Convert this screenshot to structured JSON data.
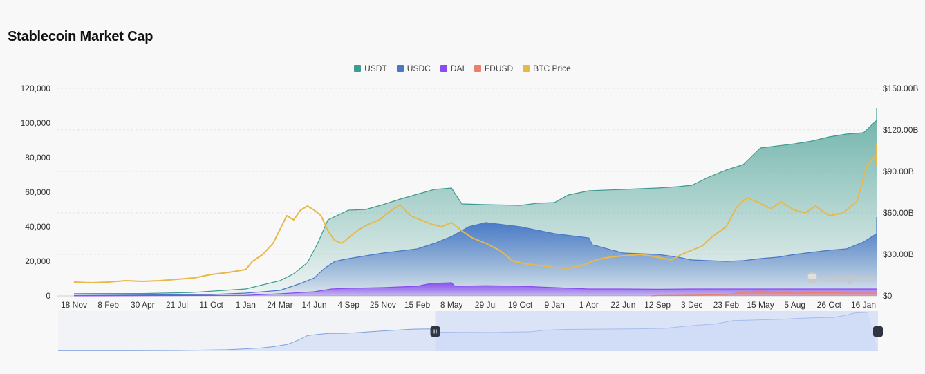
{
  "title": "Stablecoin Market Cap",
  "watermark": "coinglass",
  "chart_data": {
    "type": "area",
    "title": "Stablecoin Market Cap",
    "x_ticks": [
      "18 Nov",
      "8 Feb",
      "30 Apr",
      "21 Jul",
      "11 Oct",
      "1 Jan",
      "24 Mar",
      "14 Jun",
      "4 Sep",
      "25 Nov",
      "15 Feb",
      "8 May",
      "29 Jul",
      "19 Oct",
      "9 Jan",
      "1 Apr",
      "22 Jun",
      "12 Sep",
      "3 Dec",
      "23 Feb",
      "15 May",
      "5 Aug",
      "26 Oct",
      "16 Jan"
    ],
    "y_left": {
      "ticks": [
        "120,000",
        "100,000",
        "80,000",
        "60,000",
        "40,000",
        "20,000",
        "0"
      ],
      "values": [
        120000,
        100000,
        80000,
        60000,
        40000,
        20000,
        0
      ],
      "range": [
        0,
        120000
      ]
    },
    "y_right": {
      "ticks": [
        "$150.00B",
        "$120.00B",
        "$90.00B",
        "$60.00B",
        "$30.00B",
        "$0"
      ],
      "values": [
        150,
        120,
        90,
        60,
        30,
        0
      ],
      "range": [
        0,
        150
      ],
      "unit": "B USD"
    },
    "legend": [
      {
        "name": "USDT",
        "color": "#3e9b8f"
      },
      {
        "name": "USDC",
        "color": "#4a78c8"
      },
      {
        "name": "DAI",
        "color": "#8a4cf0"
      },
      {
        "name": "FDUSD",
        "color": "#ec7f68"
      },
      {
        "name": "BTC Price",
        "color": "#e8b84a"
      }
    ],
    "series": [
      {
        "name": "USDT",
        "axis": "right",
        "kind": "stacked-area",
        "color": "#3e9b8f",
        "points": [
          [
            0,
            1.6
          ],
          [
            2,
            1.7
          ],
          [
            3.4,
            2.4
          ],
          [
            4.5,
            4.2
          ],
          [
            5,
            5
          ],
          [
            5.5,
            8
          ],
          [
            6,
            11
          ],
          [
            6.4,
            16
          ],
          [
            6.8,
            24
          ],
          [
            7.1,
            38
          ],
          [
            7.4,
            55
          ],
          [
            8,
            62
          ],
          [
            8.5,
            62.5
          ],
          [
            9,
            66
          ],
          [
            9.5,
            70
          ],
          [
            10,
            73.5
          ],
          [
            10.5,
            77
          ],
          [
            11,
            78
          ],
          [
            11.1,
            74
          ],
          [
            11.3,
            66.5
          ],
          [
            12,
            66
          ],
          [
            13,
            65.5
          ],
          [
            13.5,
            67
          ],
          [
            14,
            67.5
          ],
          [
            14.4,
            73
          ],
          [
            15,
            76
          ],
          [
            16,
            77
          ],
          [
            17,
            78
          ],
          [
            17.6,
            79
          ],
          [
            18,
            80
          ],
          [
            18.5,
            86
          ],
          [
            19,
            91
          ],
          [
            19.5,
            95
          ],
          [
            20,
            107
          ],
          [
            21,
            110
          ],
          [
            21.5,
            112
          ],
          [
            22,
            115
          ],
          [
            22.5,
            117
          ],
          [
            23,
            118
          ],
          [
            23.4,
            127
          ],
          [
            23.6,
            133
          ],
          [
            24,
            136
          ]
        ]
      },
      {
        "name": "USDC",
        "axis": "right",
        "kind": "area",
        "color": "#4a78c8",
        "points": [
          [
            0,
            0.3
          ],
          [
            4,
            1
          ],
          [
            5,
            2
          ],
          [
            6,
            4
          ],
          [
            6.6,
            9
          ],
          [
            7,
            13
          ],
          [
            7.3,
            20
          ],
          [
            7.6,
            25
          ],
          [
            8,
            27
          ],
          [
            9,
            31
          ],
          [
            10,
            34
          ],
          [
            10.5,
            38
          ],
          [
            11,
            43
          ],
          [
            11.5,
            50
          ],
          [
            12,
            53
          ],
          [
            13,
            50
          ],
          [
            14,
            45
          ],
          [
            15,
            42
          ],
          [
            15.1,
            37
          ],
          [
            16,
            31
          ],
          [
            17,
            30
          ],
          [
            17.6,
            28
          ],
          [
            18,
            26
          ],
          [
            19,
            25
          ],
          [
            19.5,
            25.5
          ],
          [
            20,
            27
          ],
          [
            20.5,
            28
          ],
          [
            21,
            30
          ],
          [
            22,
            33
          ],
          [
            22.5,
            34
          ],
          [
            23,
            39
          ],
          [
            23.5,
            45
          ],
          [
            24,
            57
          ]
        ]
      },
      {
        "name": "DAI",
        "axis": "right",
        "kind": "area",
        "color": "#8a4cf0",
        "points": [
          [
            0,
            0.05
          ],
          [
            5,
            0.4
          ],
          [
            6,
            1.5
          ],
          [
            7,
            3
          ],
          [
            7.5,
            5
          ],
          [
            8,
            5.5
          ],
          [
            9,
            6
          ],
          [
            9.5,
            6.5
          ],
          [
            10,
            7
          ],
          [
            10.4,
            9
          ],
          [
            11,
            9.5
          ],
          [
            11.1,
            7
          ],
          [
            12,
            7.4
          ],
          [
            13,
            7
          ],
          [
            14,
            6
          ],
          [
            15,
            5
          ],
          [
            16,
            5
          ],
          [
            17,
            4.8
          ],
          [
            18,
            5
          ],
          [
            19,
            5
          ],
          [
            20,
            5
          ],
          [
            21,
            5
          ],
          [
            22,
            5
          ],
          [
            23,
            5
          ],
          [
            24,
            5
          ]
        ]
      },
      {
        "name": "FDUSD",
        "axis": "right",
        "kind": "area",
        "color": "#ec7f68",
        "points": [
          [
            16.8,
            0
          ],
          [
            17,
            0.3
          ],
          [
            18,
            0.5
          ],
          [
            19,
            1
          ],
          [
            19.5,
            2.5
          ],
          [
            20,
            3.5
          ],
          [
            20.5,
            2.5
          ],
          [
            21,
            2
          ],
          [
            22,
            2.5
          ],
          [
            22.5,
            2
          ],
          [
            23,
            2
          ],
          [
            24,
            2
          ]
        ]
      },
      {
        "name": "BTC Price",
        "axis": "right",
        "kind": "line",
        "color": "#e8b84a",
        "points": [
          [
            0,
            10
          ],
          [
            0.5,
            9.5
          ],
          [
            1,
            10
          ],
          [
            1.5,
            11
          ],
          [
            2,
            10.5
          ],
          [
            2.5,
            11
          ],
          [
            3,
            12
          ],
          [
            3.5,
            13
          ],
          [
            4,
            15.5
          ],
          [
            4.5,
            17
          ],
          [
            5,
            19
          ],
          [
            5.2,
            25
          ],
          [
            5.5,
            30
          ],
          [
            5.8,
            38
          ],
          [
            6,
            48
          ],
          [
            6.2,
            58
          ],
          [
            6.4,
            55
          ],
          [
            6.6,
            62
          ],
          [
            6.8,
            65
          ],
          [
            7,
            62
          ],
          [
            7.2,
            58
          ],
          [
            7.4,
            47
          ],
          [
            7.6,
            40
          ],
          [
            7.8,
            38
          ],
          [
            8,
            42
          ],
          [
            8.3,
            48
          ],
          [
            8.6,
            52
          ],
          [
            8.9,
            55
          ],
          [
            9.2,
            61
          ],
          [
            9.5,
            66
          ],
          [
            9.8,
            58
          ],
          [
            10,
            56
          ],
          [
            10.4,
            52
          ],
          [
            10.7,
            50
          ],
          [
            11,
            53
          ],
          [
            11.3,
            47
          ],
          [
            11.6,
            42
          ],
          [
            12,
            38
          ],
          [
            12.4,
            33
          ],
          [
            12.8,
            25
          ],
          [
            13.2,
            23
          ],
          [
            13.6,
            22
          ],
          [
            14,
            20.5
          ],
          [
            14.4,
            20
          ],
          [
            14.8,
            22
          ],
          [
            15.2,
            26
          ],
          [
            15.6,
            28
          ],
          [
            16,
            29
          ],
          [
            16.5,
            30
          ],
          [
            17,
            28
          ],
          [
            17.4,
            26
          ],
          [
            17.7,
            30
          ],
          [
            18,
            33
          ],
          [
            18.3,
            36
          ],
          [
            18.6,
            43
          ],
          [
            19,
            50
          ],
          [
            19.3,
            64
          ],
          [
            19.6,
            71
          ],
          [
            20,
            67
          ],
          [
            20.3,
            63
          ],
          [
            20.6,
            68
          ],
          [
            21,
            62
          ],
          [
            21.3,
            60
          ],
          [
            21.6,
            65
          ],
          [
            22,
            58
          ],
          [
            22.4,
            60
          ],
          [
            22.8,
            68
          ],
          [
            23.1,
            94
          ],
          [
            23.4,
            102
          ],
          [
            23.7,
            97
          ],
          [
            24,
            110
          ],
          [
            24.3,
            105
          ],
          [
            24.6,
            97
          ],
          [
            24.9,
            95
          ]
        ]
      }
    ],
    "navigator": {
      "range_start_fraction": 0.46,
      "range_end_fraction": 1.0
    }
  }
}
